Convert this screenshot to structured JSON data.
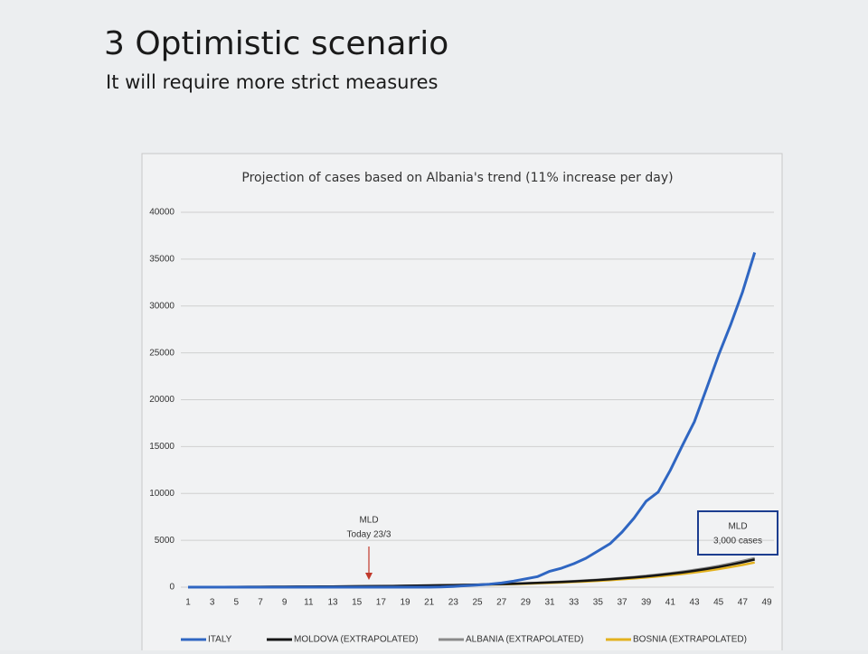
{
  "slide": {
    "title": "3 Optimistic scenario",
    "subtitle": "It will require more strict measures"
  },
  "chart_data": {
    "type": "line",
    "title": "Projection of cases based on Albania's trend (11% increase per day)",
    "x": [
      1,
      2,
      3,
      4,
      5,
      6,
      7,
      8,
      9,
      10,
      11,
      12,
      13,
      14,
      15,
      16,
      17,
      18,
      19,
      20,
      21,
      22,
      23,
      24,
      25,
      26,
      27,
      28,
      29,
      30,
      31,
      32,
      33,
      34,
      35,
      36,
      37,
      38,
      39,
      40,
      41,
      42,
      43,
      44,
      45,
      46,
      47,
      48,
      49
    ],
    "xlim": [
      1,
      49
    ],
    "xticks": [
      1,
      3,
      5,
      7,
      9,
      11,
      13,
      15,
      17,
      19,
      21,
      23,
      25,
      27,
      29,
      31,
      33,
      35,
      37,
      39,
      41,
      43,
      45,
      47,
      49
    ],
    "ylim": [
      0,
      40000
    ],
    "yticks": [
      0,
      5000,
      10000,
      15000,
      20000,
      25000,
      30000,
      35000,
      40000
    ],
    "grid": true,
    "series": [
      {
        "name": "ITALY",
        "color": "#2f66c2",
        "values": [
          3,
          3,
          3,
          3,
          3,
          3,
          3,
          3,
          3,
          3,
          3,
          3,
          3,
          3,
          3,
          3,
          3,
          3,
          3,
          3,
          3,
          20,
          79,
          150,
          227,
          320,
          445,
          650,
          888,
          1128,
          1694,
          2036,
          2502,
          3089,
          3858,
          4636,
          5883,
          7375,
          9172,
          10149,
          12462,
          15113,
          17660,
          21157,
          24747,
          27980,
          31506,
          35713,
          null
        ]
      },
      {
        "name": "MOLDOVA (EXTRAPOLATED)",
        "color": "#151515",
        "values": [
          22,
          24,
          27,
          29,
          33,
          37,
          41,
          46,
          50,
          56,
          62,
          68,
          76,
          85,
          94,
          105,
          117,
          130,
          144,
          161,
          179,
          199,
          220,
          240,
          267,
          296,
          330,
          366,
          406,
          450,
          500,
          555,
          616,
          683,
          758,
          842,
          934,
          1037,
          1151,
          1278,
          1418,
          1575,
          1748,
          1940,
          2154,
          2390,
          2653,
          2945,
          null
        ]
      },
      {
        "name": "ALBANIA (EXTRAPOLATED)",
        "color": "#8a8a8a",
        "values": [
          23,
          25,
          28,
          31,
          35,
          39,
          43,
          48,
          53,
          59,
          65,
          72,
          80,
          89,
          99,
          110,
          123,
          137,
          152,
          169,
          188,
          209,
          232,
          253,
          281,
          312,
          347,
          385,
          427,
          474,
          526,
          584,
          648,
          719,
          798,
          886,
          983,
          1092,
          1212,
          1345,
          1493,
          1658,
          1840,
          2042,
          2267,
          2516,
          2793,
          3100,
          null
        ]
      },
      {
        "name": "BOSNIA (EXTRAPOLATED)",
        "color": "#e3b11e",
        "values": [
          20,
          21,
          24,
          26,
          30,
          33,
          37,
          41,
          45,
          50,
          55,
          61,
          68,
          76,
          84,
          94,
          105,
          116,
          129,
          144,
          160,
          178,
          197,
          215,
          239,
          265,
          295,
          327,
          363,
          403,
          447,
          496,
          551,
          611,
          678,
          753,
          836,
          928,
          1030,
          1143,
          1269,
          1409,
          1564,
          1736,
          1927,
          2139,
          2374,
          2635,
          null
        ]
      }
    ],
    "annotations": [
      {
        "text": [
          "MLD",
          "Today 23/3"
        ],
        "x": 16
      },
      {
        "text": [
          "MLD",
          "3,000 cases"
        ]
      }
    ]
  }
}
